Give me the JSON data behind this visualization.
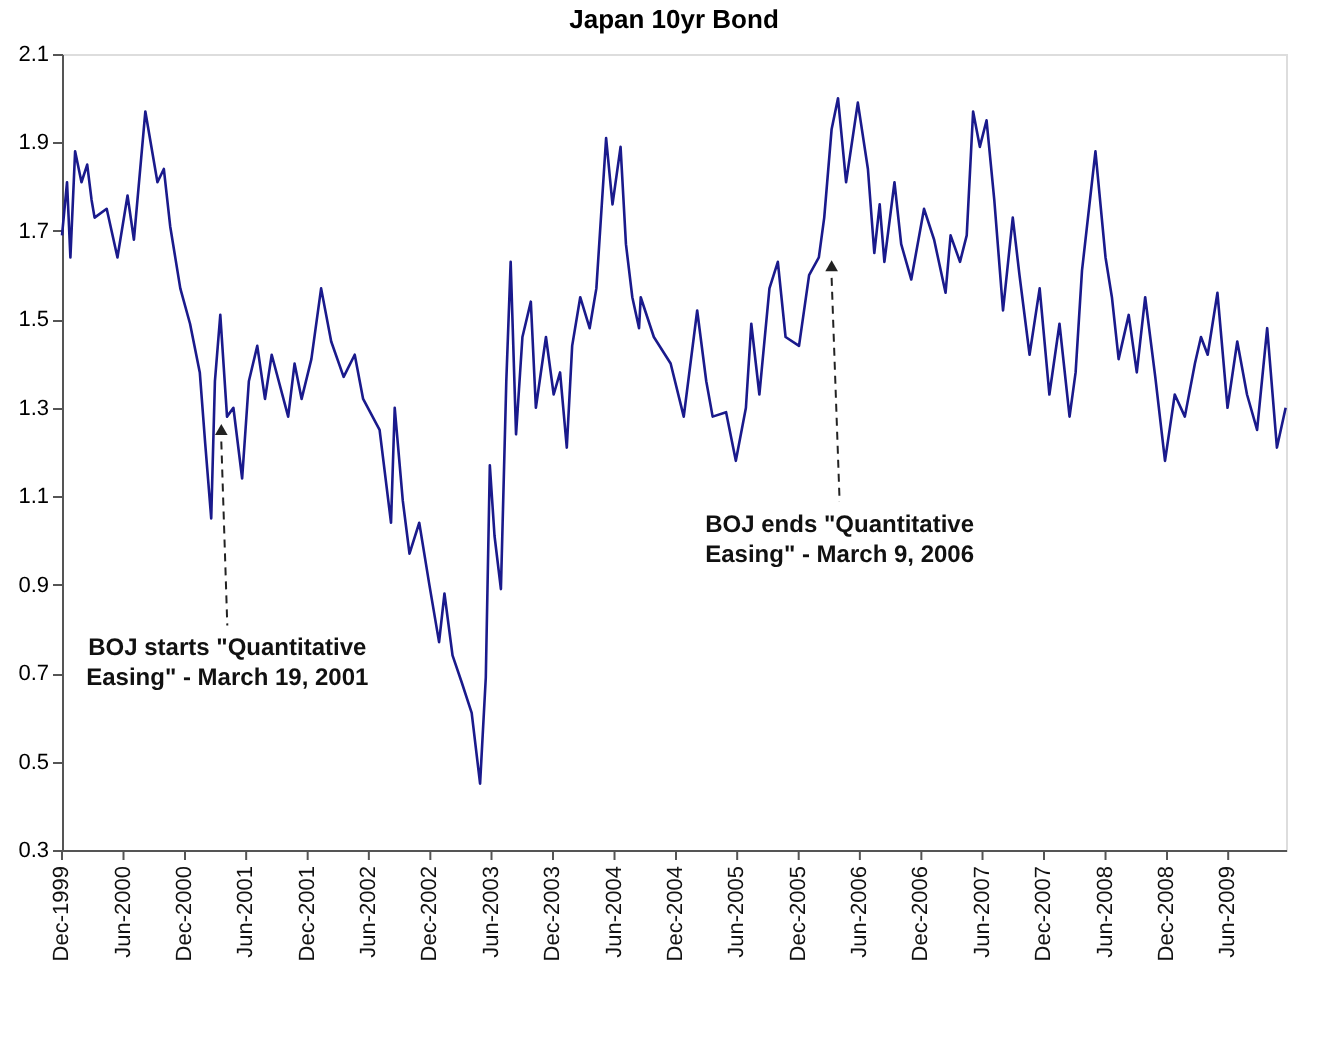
{
  "chart_data": {
    "type": "line",
    "title": "Japan 10yr Bond",
    "x": [
      "1999-12-01",
      "1999-12-16",
      "1999-12-26",
      "2000-01-09",
      "2000-01-28",
      "2000-02-14",
      "2000-02-27",
      "2000-03-07",
      "2000-04-12",
      "2000-05-14",
      "2000-06-13",
      "2000-07-02",
      "2000-08-05",
      "2000-09-10",
      "2000-09-29",
      "2000-10-18",
      "2000-11-17",
      "2000-12-16",
      "2001-01-14",
      "2001-01-30",
      "2001-02-17",
      "2001-02-28",
      "2001-03-16",
      "2001-04-05",
      "2001-04-24",
      "2001-05-20",
      "2001-06-09",
      "2001-07-04",
      "2001-07-27",
      "2001-08-16",
      "2001-10-04",
      "2001-10-23",
      "2001-11-13",
      "2001-12-12",
      "2002-01-10",
      "2002-02-09",
      "2002-03-18",
      "2002-04-20",
      "2002-05-15",
      "2002-07-03",
      "2002-08-06",
      "2002-08-17",
      "2002-09-10",
      "2002-09-30",
      "2002-10-29",
      "2002-11-28",
      "2002-12-27",
      "2003-01-12",
      "2003-02-05",
      "2003-03-04",
      "2003-04-03",
      "2003-04-28",
      "2003-05-15",
      "2003-05-27",
      "2003-06-10",
      "2003-06-29",
      "2003-07-15",
      "2003-07-28",
      "2003-08-13",
      "2003-09-01",
      "2003-09-26",
      "2003-10-11",
      "2003-11-10",
      "2003-12-03",
      "2003-12-22",
      "2004-01-11",
      "2004-01-27",
      "2004-02-20",
      "2004-03-19",
      "2004-04-08",
      "2004-05-07",
      "2004-05-26",
      "2004-06-19",
      "2004-07-05",
      "2004-07-24",
      "2004-08-13",
      "2004-08-18",
      "2004-09-26",
      "2004-11-15",
      "2004-12-24",
      "2005-02-02",
      "2005-03-01",
      "2005-03-20",
      "2005-04-29",
      "2005-05-28",
      "2005-06-27",
      "2005-07-13",
      "2005-08-06",
      "2005-09-05",
      "2005-09-30",
      "2005-10-23",
      "2005-12-02",
      "2006-01-01",
      "2006-01-30",
      "2006-02-15",
      "2006-03-09",
      "2006-03-28",
      "2006-04-21",
      "2006-05-26",
      "2006-06-25",
      "2006-07-14",
      "2006-07-30",
      "2006-08-13",
      "2006-09-12",
      "2006-10-02",
      "2006-11-01",
      "2006-12-09",
      "2007-01-08",
      "2007-02-11",
      "2007-02-26",
      "2007-03-26",
      "2007-04-15",
      "2007-05-04",
      "2007-05-24",
      "2007-06-13",
      "2007-07-06",
      "2007-08-01",
      "2007-08-30",
      "2007-09-19",
      "2007-10-19",
      "2007-11-18",
      "2007-12-17",
      "2008-01-16",
      "2008-02-15",
      "2008-03-04",
      "2008-03-23",
      "2008-05-02",
      "2008-06-01",
      "2008-06-20",
      "2008-07-10",
      "2008-08-09",
      "2008-09-02",
      "2008-09-27",
      "2008-10-27",
      "2008-11-25",
      "2008-12-24",
      "2009-01-23",
      "2009-02-22",
      "2009-03-12",
      "2009-04-01",
      "2009-04-30",
      "2009-05-30",
      "2009-06-28",
      "2009-07-27",
      "2009-08-26",
      "2009-09-25",
      "2009-10-24",
      "2009-11-19"
    ],
    "series": [
      {
        "color": "#1a1a8c",
        "values": [
          1.69,
          1.81,
          1.64,
          1.88,
          1.81,
          1.85,
          1.77,
          1.73,
          1.75,
          1.64,
          1.78,
          1.68,
          1.97,
          1.81,
          1.84,
          1.71,
          1.57,
          1.49,
          1.38,
          1.22,
          1.05,
          1.36,
          1.51,
          1.28,
          1.3,
          1.14,
          1.36,
          1.44,
          1.32,
          1.42,
          1.28,
          1.4,
          1.32,
          1.41,
          1.57,
          1.45,
          1.37,
          1.42,
          1.32,
          1.25,
          1.04,
          1.3,
          1.09,
          0.97,
          1.04,
          0.9,
          0.77,
          0.88,
          0.74,
          0.68,
          0.61,
          0.45,
          0.69,
          1.17,
          1.01,
          0.89,
          1.36,
          1.63,
          1.24,
          1.46,
          1.54,
          1.3,
          1.46,
          1.33,
          1.38,
          1.21,
          1.44,
          1.55,
          1.48,
          1.57,
          1.91,
          1.76,
          1.89,
          1.67,
          1.55,
          1.48,
          1.55,
          1.46,
          1.4,
          1.28,
          1.52,
          1.36,
          1.28,
          1.29,
          1.18,
          1.3,
          1.49,
          1.33,
          1.57,
          1.63,
          1.46,
          1.44,
          1.6,
          1.64,
          1.73,
          1.93,
          2.0,
          1.81,
          1.99,
          1.84,
          1.65,
          1.76,
          1.63,
          1.81,
          1.67,
          1.59,
          1.75,
          1.68,
          1.56,
          1.69,
          1.63,
          1.69,
          1.97,
          1.89,
          1.95,
          1.77,
          1.52,
          1.73,
          1.6,
          1.42,
          1.57,
          1.33,
          1.49,
          1.28,
          1.38,
          1.61,
          1.88,
          1.64,
          1.55,
          1.41,
          1.51,
          1.38,
          1.55,
          1.37,
          1.18,
          1.33,
          1.28,
          1.4,
          1.46,
          1.42,
          1.56,
          1.3,
          1.45,
          1.33,
          1.25,
          1.48,
          1.21,
          1.3
        ]
      }
    ],
    "xlim": [
      "1999-12-01",
      "2009-11-20"
    ],
    "xticks": [
      {
        "value": "1999-12",
        "label": "Dec-1999"
      },
      {
        "value": "2000-06",
        "label": "Jun-2000"
      },
      {
        "value": "2000-12",
        "label": "Dec-2000"
      },
      {
        "value": "2001-06",
        "label": "Jun-2001"
      },
      {
        "value": "2001-12",
        "label": "Dec-2001"
      },
      {
        "value": "2002-06",
        "label": "Jun-2002"
      },
      {
        "value": "2002-12",
        "label": "Dec-2002"
      },
      {
        "value": "2003-06",
        "label": "Jun-2003"
      },
      {
        "value": "2003-12",
        "label": "Dec-2003"
      },
      {
        "value": "2004-06",
        "label": "Jun-2004"
      },
      {
        "value": "2004-12",
        "label": "Dec-2004"
      },
      {
        "value": "2005-06",
        "label": "Jun-2005"
      },
      {
        "value": "2005-12",
        "label": "Dec-2005"
      },
      {
        "value": "2006-06",
        "label": "Jun-2006"
      },
      {
        "value": "2006-12",
        "label": "Dec-2006"
      },
      {
        "value": "2007-06",
        "label": "Jun-2007"
      },
      {
        "value": "2007-12",
        "label": "Dec-2007"
      },
      {
        "value": "2008-06",
        "label": "Jun-2008"
      },
      {
        "value": "2008-12",
        "label": "Dec-2008"
      },
      {
        "value": "2009-06",
        "label": "Jun-2009"
      }
    ],
    "ylim": [
      0.3,
      2.1
    ],
    "yticks": [
      0.3,
      0.5,
      0.7,
      0.9,
      1.1,
      1.3,
      1.5,
      1.7,
      1.9,
      2.1
    ],
    "grid": false,
    "legend": false,
    "marker": "none",
    "line_style": "solid",
    "annotations": [
      {
        "text": "BOJ starts \"Quantitative Easing\" - March 19, 2001",
        "x": "2001-03-19",
        "y": 1.26
      },
      {
        "text": "BOJ ends \"Quantitative Easing\" - March 9, 2006",
        "x": "2006-03-09",
        "y": 1.63
      }
    ]
  }
}
